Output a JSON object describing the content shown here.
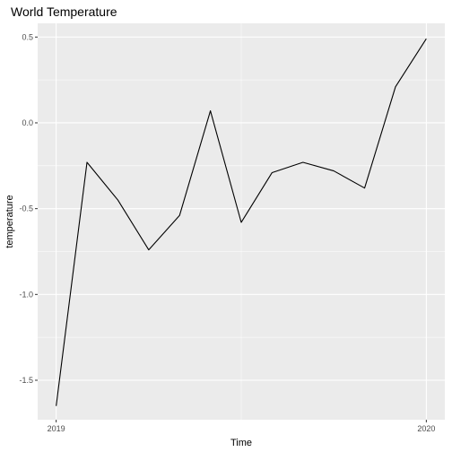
{
  "chart_data": {
    "type": "line",
    "title": "World Temperature",
    "xlabel": "Time",
    "ylabel": "temperature",
    "x_ticks": [
      {
        "value": 2019.0,
        "label": "2019"
      },
      {
        "value": 2020.0,
        "label": "2020"
      }
    ],
    "y_ticks": [
      {
        "value": -1.5,
        "label": "-1.5"
      },
      {
        "value": -1.0,
        "label": "-1.0"
      },
      {
        "value": -0.5,
        "label": "-0.5"
      },
      {
        "value": 0.0,
        "label": "0.0"
      },
      {
        "value": 0.5,
        "label": "0.5"
      }
    ],
    "xlim": [
      2018.95,
      2020.05
    ],
    "ylim": [
      -1.73,
      0.58
    ],
    "grid": true,
    "line_color": "#000000",
    "panel_background": "#ebebeb",
    "gridline_color": "#ffffff",
    "series": [
      {
        "x": [
          2019.0,
          2019.0833,
          2019.1667,
          2019.25,
          2019.3333,
          2019.4167,
          2019.5,
          2019.5833,
          2019.6667,
          2019.75,
          2019.8333,
          2019.9167,
          2020.0
        ],
        "values": [
          -1.65,
          -0.23,
          -0.45,
          -0.74,
          -0.54,
          0.07,
          -0.58,
          -0.29,
          -0.23,
          -0.28,
          -0.38,
          0.21,
          0.49
        ]
      }
    ]
  }
}
